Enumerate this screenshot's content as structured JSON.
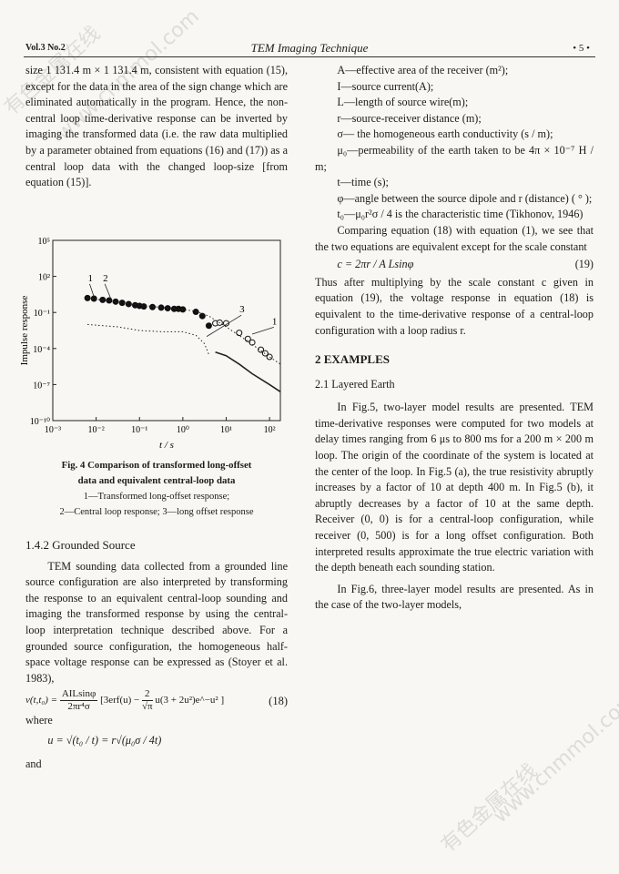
{
  "header": {
    "volume": "Vol.3  No.2",
    "title": "TEM Imaging Technique",
    "page": "• 5 •"
  },
  "left": {
    "para1": "size 1 131.4 m × 1 131.4 m, consistent with equation (15), except for the data in the area of the sign change which are eliminated automatically in the program. Hence, the non-central loop time-derivative response can be inverted by imaging the transformed data (i.e. the raw data multiplied by a parameter obtained from equations (16) and (17)) as a central loop data with the changed loop-size [from equation (15)].",
    "caption_title_1": "Fig. 4   Comparison of transformed long-offset",
    "caption_title_2": "data and equivalent central-loop data",
    "caption_legend_1": "1—Transformed long-offset response;",
    "caption_legend_2": "2—Central loop response; 3—long offset response",
    "section_heading": "1.4.2   Grounded Source",
    "para2": "TEM sounding data collected from a grounded line source configuration are also interpreted by transforming the response to an equivalent central-loop sounding and imaging the transformed response by using the central-loop interpretation technique described above. For a grounded source configuration, the homogeneous half-space voltage response can be expressed as (Stoyer et al. 1983),",
    "eq18_lhs": "v(t,t₀) =",
    "eq18_num": "AILsinφ",
    "eq18_den": "2πr⁴σ",
    "eq18_rest": "[3erf(u) − ",
    "eq18_num2": "2",
    "eq18_den2": "√π",
    "eq18_tail": "u(3 + 2u²)e^−u² ]",
    "eq18_no": "(18)",
    "where": "where",
    "eq_u": "u = √(t₀ / t) = r√(μ₀σ / 4t)",
    "and": "and"
  },
  "right": {
    "defs": [
      "A—effective area of the receiver (m²);",
      "I—source current(A);",
      "L—length of source wire(m);",
      "r—source-receiver distance (m);",
      "σ— the homogeneous earth conductivity (s / m);",
      "μ₀—permeability of the earth taken to be 4π × 10⁻⁷ H / m;",
      "t—time (s);",
      "φ—angle between the source dipole and r (distance) ( ° );",
      "t₀—μ₀r²σ / 4 is the characteristic time (Tikhonov, 1946)"
    ],
    "para1": "Comparing equation (18) with equation (1), we see that the two equations are equivalent except for the scale constant",
    "eq19": "c = 2πr / A Lsinφ",
    "eq19_no": "(19)",
    "para2": "Thus after multiplying by the scale constant c given in equation (19), the voltage response in equation (18) is equivalent to the time-derivative response of a central-loop configuration with a loop radius r.",
    "section_heading": "2  EXAMPLES",
    "subsection_heading": "2.1   Layered Earth",
    "para3": "In Fig.5, two-layer model results are presented. TEM time-derivative responses were computed for two models at delay times ranging from 6 μs to 800 ms for a 200 m × 200 m loop. The origin of the coordinate of the system is located at the center of the loop. In Fig.5 (a), the true resistivity abruptly increases by a factor of 10 at depth 400 m. In Fig.5 (b), it abruptly decreases by a factor of 10 at the same depth. Receiver (0, 0) is for a central-loop configuration, while receiver (0, 500) is for a long offset configuration. Both interpreted results approximate the true electric variation with the depth beneath each sounding station.",
    "para4": "In Fig.6, three-layer model results are presented. As in the case of the two-layer models,"
  },
  "watermark": {
    "text1": "有色金属在线",
    "text2": "www.cnmmol.com"
  },
  "chart_data": {
    "type": "scatter",
    "xlabel": "t / s",
    "ylabel": "Impulse response",
    "xscale": "log",
    "yscale": "log",
    "xlim_log10": [
      -3,
      2.25
    ],
    "ylim_log10": [
      -10,
      5
    ],
    "xticks": [
      "10⁻³",
      "10⁻²",
      "10⁻¹",
      "10⁰",
      "10¹",
      "10²"
    ],
    "yticks": [
      "10⁵",
      "10²",
      "10⁻¹",
      "10⁻⁴",
      "10⁻⁷",
      "10⁻¹⁰"
    ],
    "annotations": [
      "1",
      "2",
      "3",
      "1"
    ],
    "series": [
      {
        "style": "filled-dots",
        "log10_x": [
          -2.2,
          -2.05,
          -1.85,
          -1.7,
          -1.55,
          -1.4,
          -1.25,
          -1.1,
          -1.0,
          -0.9,
          -0.7,
          -0.5,
          -0.35,
          -0.2,
          -0.1,
          0.0,
          0.3,
          0.45,
          0.6
        ],
        "log10_y": [
          0.2,
          0.15,
          0.05,
          0.0,
          -0.1,
          -0.2,
          -0.3,
          -0.4,
          -0.45,
          -0.5,
          -0.55,
          -0.6,
          -0.65,
          -0.7,
          -0.7,
          -0.75,
          -0.95,
          -1.3,
          -2.1
        ]
      },
      {
        "style": "open-circles",
        "log10_x": [
          0.75,
          0.85,
          1.0,
          1.3,
          1.5,
          1.6,
          1.8,
          1.9,
          2.0
        ],
        "log10_y": [
          -1.9,
          -1.85,
          -1.9,
          -2.7,
          -3.2,
          -3.5,
          -4.1,
          -4.4,
          -4.7
        ]
      },
      {
        "style": "dotted",
        "log10_x": [
          -2.2,
          -1,
          0,
          0.3,
          0.6,
          1,
          1.5,
          2,
          2.25
        ],
        "log10_y": [
          0.2,
          -0.4,
          -0.75,
          -0.9,
          -1.3,
          -2.2,
          -3.4,
          -4.7,
          -5.3
        ]
      },
      {
        "style": "dotted",
        "log10_x": [
          -2.2,
          -1.5,
          -1,
          -0.5,
          0,
          0.3,
          0.5,
          0.6
        ],
        "log10_y": [
          -2.0,
          -2.2,
          -2.5,
          -2.6,
          -2.6,
          -2.9,
          -3.6,
          -4.5
        ]
      },
      {
        "style": "solid",
        "log10_x": [
          0.75,
          1.0,
          1.3,
          1.6,
          2.0,
          2.25
        ],
        "log10_y": [
          -4.3,
          -4.6,
          -5.3,
          -6.1,
          -7.0,
          -7.6
        ]
      }
    ]
  }
}
